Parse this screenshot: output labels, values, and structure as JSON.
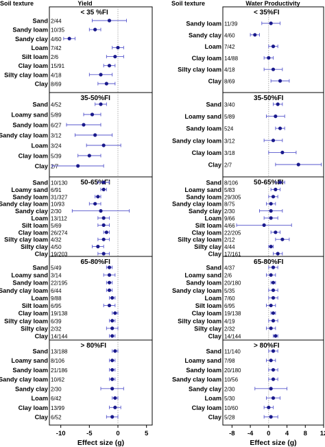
{
  "chart_data": [
    {
      "type": "forest",
      "header_left": "Soil texture",
      "title": "Yield",
      "xlabel": "Effect size (g)",
      "xticks": [
        -10,
        -5,
        0,
        5
      ],
      "xlim": [
        -12,
        6
      ],
      "reference_line": 0,
      "panels": [
        {
          "label": "< 35 %FI",
          "rows": [
            {
              "texture": "Sand",
              "n": "2/44",
              "mean": -1.5,
              "ci": [
                -4.5,
                1.5
              ]
            },
            {
              "texture": "Sandy loam",
              "n": "10/35",
              "mean": -4.0,
              "ci": [
                -5.0,
                -3.0
              ]
            },
            {
              "texture": "Sandy clay",
              "n": "4/60",
              "mean": -8.5,
              "ci": [
                -9.5,
                -7.5
              ]
            },
            {
              "texture": "Loam",
              "n": "7/42",
              "mean": 0.0,
              "ci": [
                -1.0,
                1.0
              ]
            },
            {
              "texture": "Silt loam",
              "n": "2/6",
              "mean": -0.5,
              "ci": [
                -2.0,
                1.0
              ]
            },
            {
              "texture": "Clay loam",
              "n": "15/91",
              "mean": -1.5,
              "ci": [
                -2.5,
                -0.5
              ]
            },
            {
              "texture": "Silty clay loam",
              "n": "4/18",
              "mean": -3.0,
              "ci": [
                -5.0,
                -1.0
              ]
            },
            {
              "texture": "Clay",
              "n": "8/69",
              "mean": -2.0,
              "ci": [
                -3.5,
                -0.5
              ]
            }
          ]
        },
        {
          "label": "35-50%FI",
          "rows": [
            {
              "texture": "Sand",
              "n": "4/52",
              "mean": -3.0,
              "ci": [
                -4.0,
                -2.0
              ]
            },
            {
              "texture": "Loamy sand",
              "n": "5/89",
              "mean": -4.5,
              "ci": [
                -6.0,
                -3.0
              ]
            },
            {
              "texture": "Sandy loam",
              "n": "6/27",
              "mean": -6.0,
              "ci": [
                -9.0,
                -3.0
              ]
            },
            {
              "texture": "Sandy clay loam",
              "n": "3/12",
              "mean": -4.0,
              "ci": [
                -7.5,
                -1.0
              ]
            },
            {
              "texture": "Loam",
              "n": "3/24",
              "mean": -2.5,
              "ci": [
                -5.5,
                0.5
              ]
            },
            {
              "texture": "Clay loam",
              "n": "5/39",
              "mean": -5.0,
              "ci": [
                -7.0,
                -3.0
              ]
            },
            {
              "texture": "Clay",
              "n": "2/7",
              "mean": -7.0,
              "ci": [
                -11.5,
                -2.5
              ]
            }
          ]
        },
        {
          "label": "50-65%FI",
          "rows": [
            {
              "texture": "Sand",
              "n": "10/130",
              "mean": -2.5,
              "ci": [
                -3.5,
                -1.5
              ]
            },
            {
              "texture": "Loamy sand",
              "n": "6/91",
              "mean": -2.5,
              "ci": [
                -3.0,
                -2.0
              ]
            },
            {
              "texture": "Sandy loam",
              "n": "31/327",
              "mean": -3.5,
              "ci": [
                -4.0,
                -3.0
              ]
            },
            {
              "texture": "Sandy clay loam",
              "n": "10/93",
              "mean": -4.0,
              "ci": [
                -5.0,
                -3.0
              ]
            },
            {
              "texture": "Sandy clay",
              "n": "2/30",
              "mean": -3.0,
              "ci": [
                -8.0,
                2.0
              ]
            },
            {
              "texture": "Loam",
              "n": "13/112",
              "mean": -2.5,
              "ci": [
                -3.5,
                -1.5
              ]
            },
            {
              "texture": "Silt loam",
              "n": "5/69",
              "mean": -2.5,
              "ci": [
                -3.5,
                -1.5
              ]
            },
            {
              "texture": "Clay loam",
              "n": "26/274",
              "mean": -2.0,
              "ci": [
                -2.5,
                -1.5
              ]
            },
            {
              "texture": "Silty clay loam",
              "n": "4/32",
              "mean": -2.5,
              "ci": [
                -3.5,
                -1.5
              ]
            },
            {
              "texture": "Silty clay",
              "n": "4/50",
              "mean": -3.5,
              "ci": [
                -4.5,
                -2.5
              ]
            },
            {
              "texture": "Clay",
              "n": "19/203",
              "mean": -2.5,
              "ci": [
                -3.5,
                -1.5
              ]
            }
          ]
        },
        {
          "label": "65-80%FI",
          "rows": [
            {
              "texture": "Sand",
              "n": "5/49",
              "mean": -1.5,
              "ci": [
                -2.0,
                -1.0
              ]
            },
            {
              "texture": "Loamy sand",
              "n": "3/14",
              "mean": -1.5,
              "ci": [
                -2.5,
                -0.5
              ]
            },
            {
              "texture": "Sandy loam",
              "n": "22/195",
              "mean": -1.5,
              "ci": [
                -2.0,
                -1.0
              ]
            },
            {
              "texture": "Sandy clay loam",
              "n": "6/44",
              "mean": -1.5,
              "ci": [
                -2.0,
                -1.0
              ]
            },
            {
              "texture": "Loam",
              "n": "9/88",
              "mean": -1.0,
              "ci": [
                -1.5,
                -0.5
              ]
            },
            {
              "texture": "Silt loam",
              "n": "6/95",
              "mean": -1.5,
              "ci": [
                -2.5,
                -0.5
              ]
            },
            {
              "texture": "Clay loam",
              "n": "19/138",
              "mean": -0.5,
              "ci": [
                -1.0,
                0.0
              ]
            },
            {
              "texture": "Silty clay loam",
              "n": "6/39",
              "mean": -1.0,
              "ci": [
                -1.5,
                -0.5
              ]
            },
            {
              "texture": "Silty clay",
              "n": "2/32",
              "mean": -1.0,
              "ci": [
                -2.0,
                0.0
              ]
            },
            {
              "texture": "Clay",
              "n": "14/144",
              "mean": -1.0,
              "ci": [
                -1.5,
                -0.5
              ]
            }
          ]
        },
        {
          "label": "> 80%FI",
          "rows": [
            {
              "texture": "Sand",
              "n": "13/188",
              "mean": -0.5,
              "ci": [
                -1.0,
                0.0
              ]
            },
            {
              "texture": "Loamy sand",
              "n": "8/106",
              "mean": -1.0,
              "ci": [
                -1.5,
                -0.5
              ]
            },
            {
              "texture": "Sandy loam",
              "n": "21/186",
              "mean": -1.0,
              "ci": [
                -1.5,
                -0.5
              ]
            },
            {
              "texture": "Sandy clay loam",
              "n": "10/62",
              "mean": -1.0,
              "ci": [
                -1.5,
                -0.5
              ]
            },
            {
              "texture": "Sandy clay",
              "n": "2/30",
              "mean": -1.0,
              "ci": [
                -3.0,
                1.0
              ]
            },
            {
              "texture": "Loam",
              "n": "6/42",
              "mean": -0.5,
              "ci": [
                -1.0,
                0.0
              ]
            },
            {
              "texture": "Clay loam",
              "n": "13/99",
              "mean": -0.5,
              "ci": [
                -1.5,
                0.5
              ]
            },
            {
              "texture": "Clay",
              "n": "6/52",
              "mean": -1.0,
              "ci": [
                -2.0,
                0.0
              ]
            }
          ]
        }
      ]
    },
    {
      "type": "forest",
      "header_left": "Soil texture",
      "title": "Water Productivity",
      "xlabel": "Effect size (g)",
      "xticks": [
        -8,
        -4,
        0,
        4,
        8,
        12
      ],
      "xlim": [
        -10,
        12
      ],
      "reference_line": 0,
      "panels": [
        {
          "label": "< 35%FI",
          "rows": [
            {
              "texture": "Sandy loam",
              "n": "11/39",
              "mean": 0.5,
              "ci": [
                -1.5,
                2.5
              ]
            },
            {
              "texture": "Sandy clay",
              "n": "4/60",
              "mean": -3.0,
              "ci": [
                -4.0,
                -2.0
              ]
            },
            {
              "texture": "Loam",
              "n": "7/42",
              "mean": 1.0,
              "ci": [
                0.0,
                2.0
              ]
            },
            {
              "texture": "Clay loam",
              "n": "14/88",
              "mean": 0.0,
              "ci": [
                -1.0,
                1.0
              ]
            },
            {
              "texture": "Silty clay loam",
              "n": "4/18",
              "mean": 1.0,
              "ci": [
                -1.0,
                3.0
              ]
            },
            {
              "texture": "Clay",
              "n": "8/69",
              "mean": 2.5,
              "ci": [
                0.5,
                4.5
              ]
            }
          ]
        },
        {
          "label": "35-50%FI",
          "rows": [
            {
              "texture": "Sand",
              "n": "3/40",
              "mean": 2.0,
              "ci": [
                1.0,
                3.0
              ]
            },
            {
              "texture": "Loamy sand",
              "n": "5/89",
              "mean": 1.5,
              "ci": [
                -0.5,
                3.5
              ]
            },
            {
              "texture": "Sandy loam",
              "n": "524",
              "mean": 2.5,
              "ci": [
                1.5,
                3.5
              ]
            },
            {
              "texture": "Sandy clay loam",
              "n": "3/12",
              "mean": 1.0,
              "ci": [
                -1.0,
                3.0
              ]
            },
            {
              "texture": "Clay loam",
              "n": "3/18",
              "mean": 3.0,
              "ci": [
                0.0,
                6.0
              ]
            },
            {
              "texture": "Clay",
              "n": "2/7",
              "mean": 6.5,
              "ci": [
                1.5,
                11.5
              ]
            }
          ]
        },
        {
          "label": "50-65%FI",
          "rows": [
            {
              "texture": "Sand",
              "n": "8/106",
              "mean": 2.5,
              "ci": [
                1.5,
                3.5
              ]
            },
            {
              "texture": "Loamy sand",
              "n": "5/83",
              "mean": 1.5,
              "ci": [
                0.5,
                2.5
              ]
            },
            {
              "texture": "Sandy loam",
              "n": "29/305",
              "mean": 1.0,
              "ci": [
                0.0,
                2.0
              ]
            },
            {
              "texture": "Sandy clay loam",
              "n": "8/75",
              "mean": 0.5,
              "ci": [
                -0.5,
                1.5
              ]
            },
            {
              "texture": "Sandy clay",
              "n": "2/30",
              "mean": 0.5,
              "ci": [
                -2.0,
                3.0
              ]
            },
            {
              "texture": "Loam",
              "n": "9/66",
              "mean": 0.5,
              "ci": [
                -1.0,
                2.0
              ]
            },
            {
              "texture": "Silt loam",
              "n": "4/66",
              "mean": -1.0,
              "ci": [
                -7.0,
                5.0
              ]
            },
            {
              "texture": "Clay loam",
              "n": "22/205",
              "mean": 1.5,
              "ci": [
                0.5,
                2.5
              ]
            },
            {
              "texture": "Silty clay loam",
              "n": "2/12",
              "mean": 3.0,
              "ci": [
                1.5,
                4.5
              ]
            },
            {
              "texture": "Silty clay",
              "n": "4/44",
              "mean": 0.5,
              "ci": [
                0.0,
                1.0
              ]
            },
            {
              "texture": "Clay",
              "n": "17/161",
              "mean": 2.0,
              "ci": [
                1.0,
                3.0
              ]
            }
          ]
        },
        {
          "label": "65-80%FI",
          "rows": [
            {
              "texture": "Sand",
              "n": "4/37",
              "mean": 1.0,
              "ci": [
                0.0,
                2.0
              ]
            },
            {
              "texture": "Loamy sand",
              "n": "2/6",
              "mean": 0.5,
              "ci": [
                -0.5,
                1.5
              ]
            },
            {
              "texture": "Sandy loam",
              "n": "20/180",
              "mean": 1.0,
              "ci": [
                0.5,
                1.5
              ]
            },
            {
              "texture": "Sandy clay loam",
              "n": "5/35",
              "mean": 1.0,
              "ci": [
                0.0,
                2.0
              ]
            },
            {
              "texture": "Loam",
              "n": "7/60",
              "mean": 1.0,
              "ci": [
                0.0,
                2.0
              ]
            },
            {
              "texture": "Silt loam",
              "n": "6/95",
              "mean": 0.5,
              "ci": [
                -0.5,
                1.5
              ]
            },
            {
              "texture": "Clay loam",
              "n": "19/138",
              "mean": 1.0,
              "ci": [
                0.5,
                1.5
              ]
            },
            {
              "texture": "Silty clay loam",
              "n": "4/19",
              "mean": 1.0,
              "ci": [
                0.0,
                2.0
              ]
            },
            {
              "texture": "Silty clay",
              "n": "2/32",
              "mean": 0.5,
              "ci": [
                -0.5,
                1.5
              ]
            },
            {
              "texture": "Clay",
              "n": "14/144",
              "mean": 1.5,
              "ci": [
                1.0,
                2.0
              ]
            }
          ]
        },
        {
          "label": "> 80%FI",
          "rows": [
            {
              "texture": "Sand",
              "n": "11/140",
              "mean": 1.0,
              "ci": [
                0.0,
                2.0
              ]
            },
            {
              "texture": "Loamy sand",
              "n": "7/98",
              "mean": 0.5,
              "ci": [
                -0.5,
                1.5
              ]
            },
            {
              "texture": "Sandy loam",
              "n": "20/180",
              "mean": 1.0,
              "ci": [
                0.0,
                2.0
              ]
            },
            {
              "texture": "Sandy clay loam",
              "n": "10/56",
              "mean": 1.0,
              "ci": [
                0.0,
                2.0
              ]
            },
            {
              "texture": "Sandy clay",
              "n": "2/30",
              "mean": 0.5,
              "ci": [
                -3.0,
                4.0
              ]
            },
            {
              "texture": "Loam",
              "n": "5/30",
              "mean": 1.0,
              "ci": [
                -0.5,
                2.5
              ]
            },
            {
              "texture": "Clay loam",
              "n": "10/60",
              "mean": 0.0,
              "ci": [
                -1.0,
                1.0
              ]
            },
            {
              "texture": "Clay",
              "n": "5/28",
              "mean": 0.5,
              "ci": [
                -1.0,
                2.0
              ]
            }
          ]
        }
      ]
    }
  ],
  "colors": {
    "point": "#1a1a8c",
    "error_bar": "#5555cc",
    "reference_line": "#9a9a9a",
    "frame": "#000000"
  }
}
